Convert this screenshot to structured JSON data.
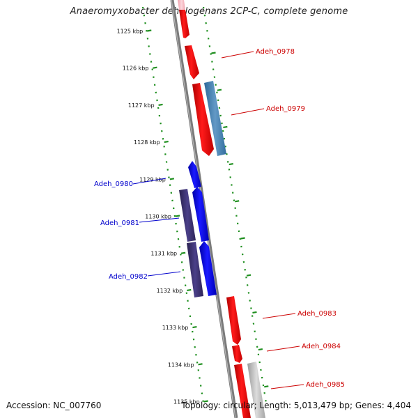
{
  "title": "Anaeromyxobacter dehalogenans 2CP-C, complete genome",
  "footer": {
    "accession": "Accession: NC_007760",
    "summary": "Topology: circular; Length: 5,013,479 bp; Genes: 4,404"
  },
  "ruler_ticks": [
    "1125 kbp",
    "1126 kbp",
    "1127 kbp",
    "1128 kbp",
    "1129 kbp",
    "1130 kbp",
    "1131 kbp",
    "1132 kbp",
    "1133 kbp",
    "1134 kbp",
    "1135 kbp"
  ],
  "gene_labels": {
    "forward": [
      "Adeh_0978",
      "Adeh_0979",
      "Adeh_0983",
      "Adeh_0984",
      "Adeh_0985"
    ],
    "reverse": [
      "Adeh_0980",
      "Adeh_0981",
      "Adeh_0982"
    ]
  },
  "colors": {
    "forward_gene": "#ff0000",
    "forward_gene_light": "#f8b8c0",
    "reverse_gene": "#0000ff",
    "reverse_feature": "#3f3475",
    "forward_feature": "#4a7fb0",
    "grey_feature": "#bdbdbd",
    "backbone": "#777777",
    "dotted_ring": "#1f8f1f",
    "forward_label": "#cc0000",
    "reverse_label": "#0000cc"
  }
}
